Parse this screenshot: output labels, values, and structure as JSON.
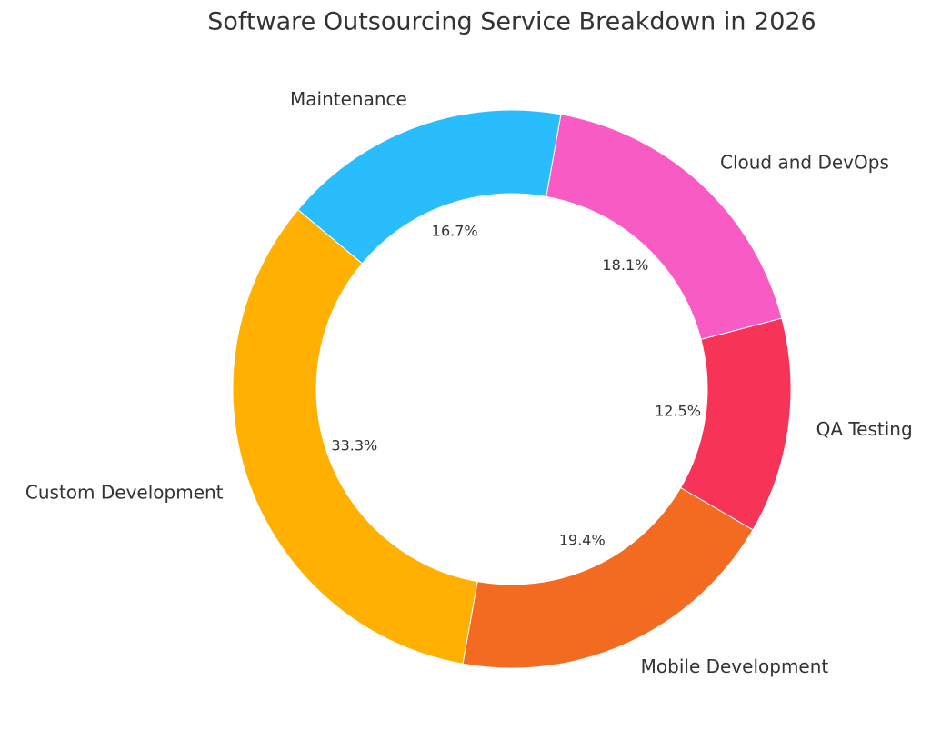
{
  "chart_data": {
    "type": "donut",
    "title": "Software Outsourcing Service Breakdown in 2026",
    "categories": [
      "Custom Development",
      "Mobile Development",
      "QA Testing",
      "Cloud and DevOps",
      "Maintenance"
    ],
    "values": [
      33.3,
      19.4,
      12.5,
      18.1,
      16.7
    ],
    "value_labels": [
      "33.3%",
      "19.4%",
      "12.5%",
      "18.1%",
      "16.7%"
    ],
    "colors": [
      "#FFB000",
      "#F26B21",
      "#F73357",
      "#F95BC5",
      "#29BDFD"
    ]
  }
}
